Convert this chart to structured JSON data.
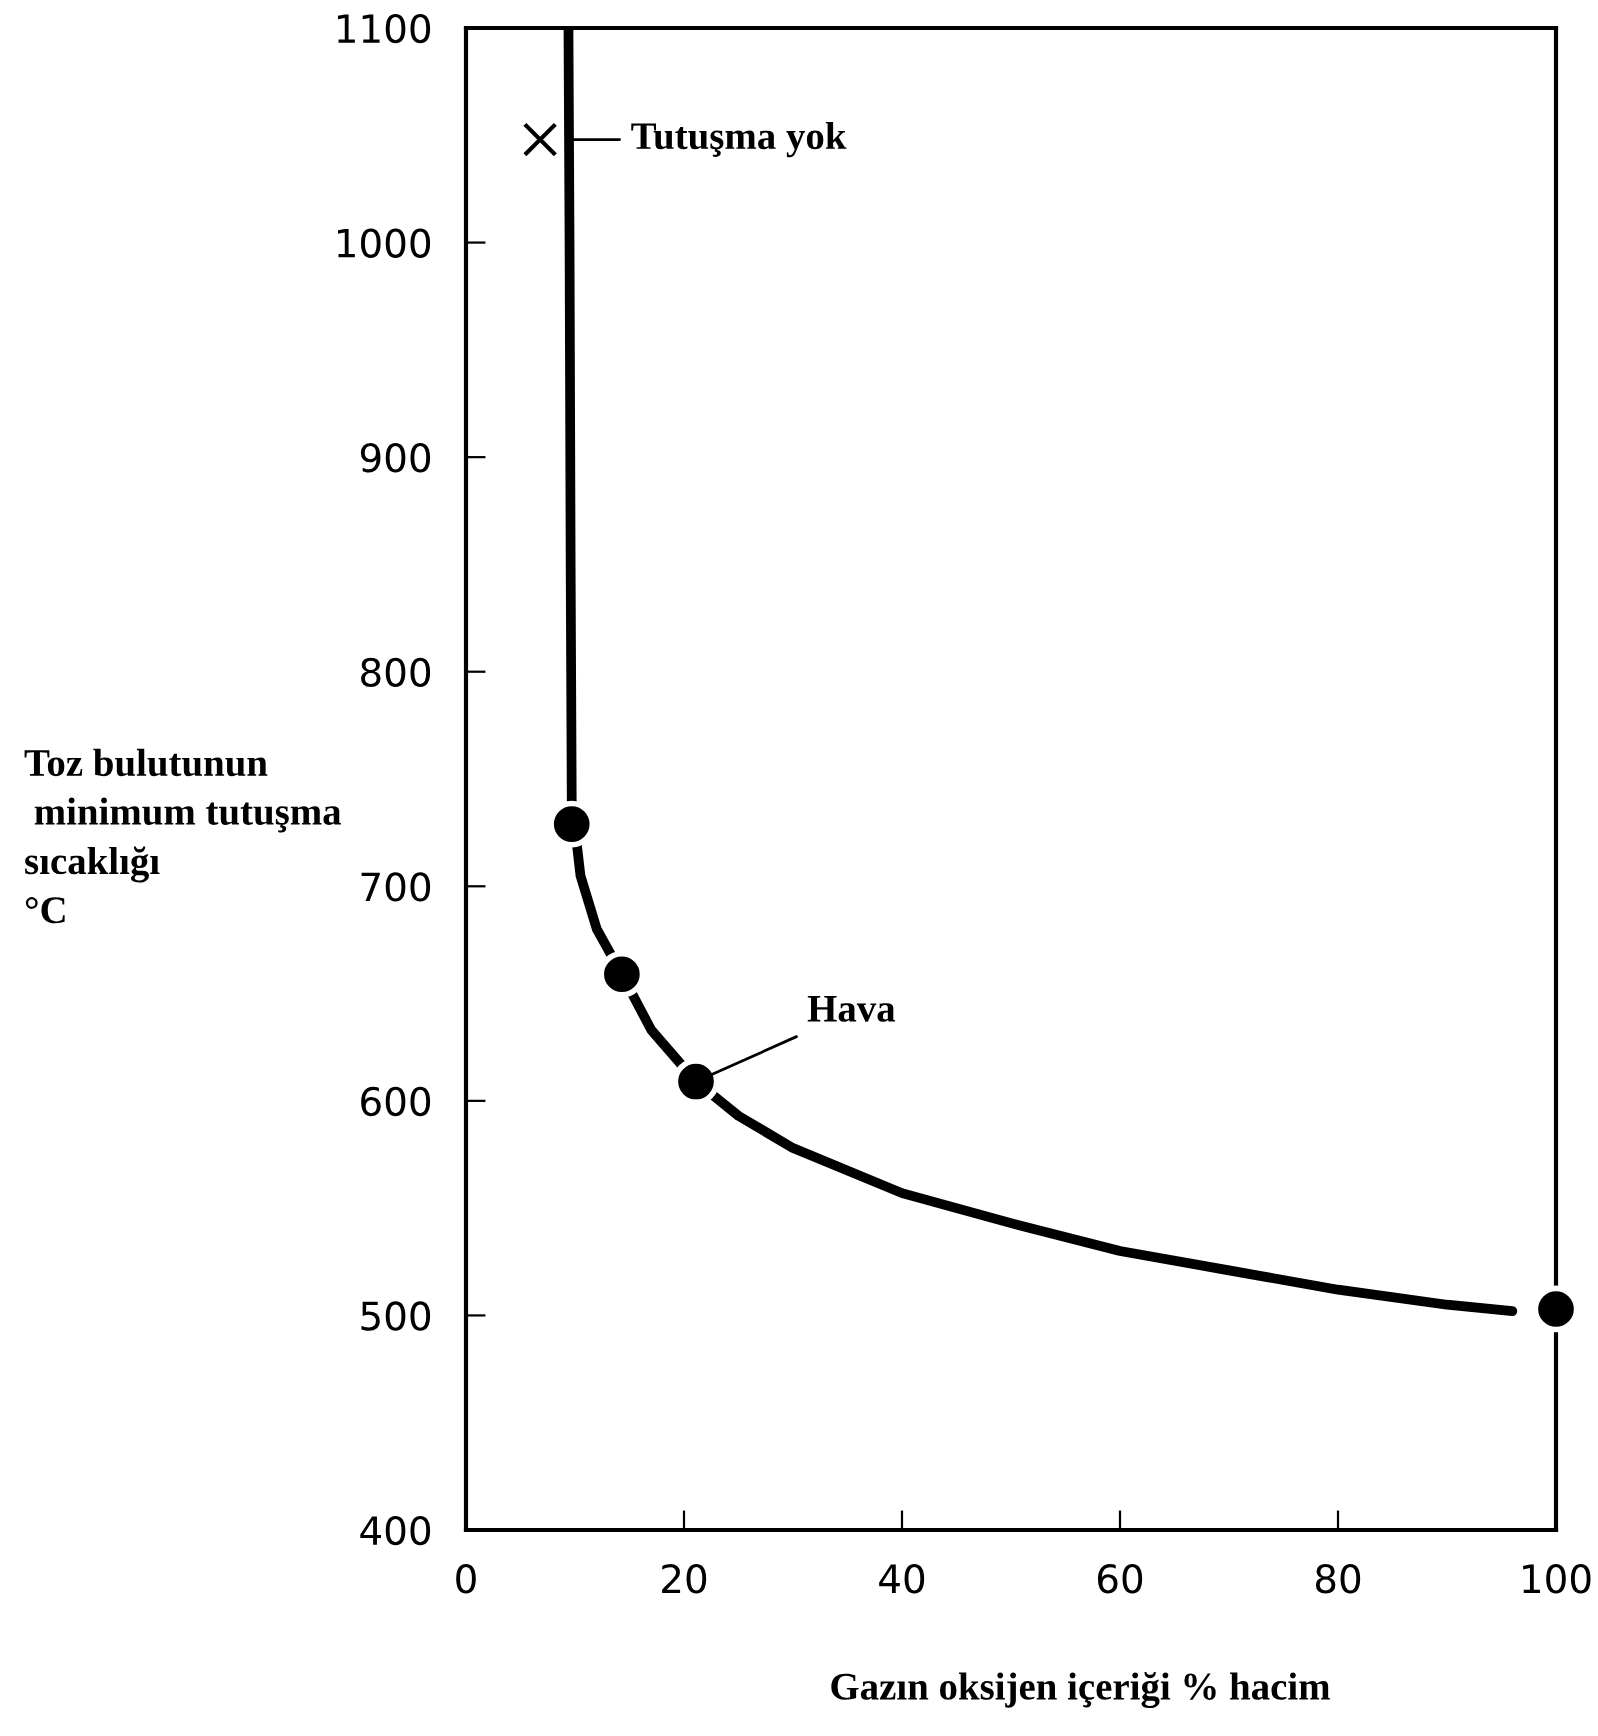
{
  "chart_data": {
    "type": "line",
    "xlabel": "Gazın oksijen içeriği % hacim",
    "ylabel": "Toz bulutunun\n minimum tutuşma\nsıcaklığı\n°C",
    "xlim": [
      0,
      100
    ],
    "ylim": [
      400,
      1100
    ],
    "xticks": [
      0,
      20,
      40,
      60,
      80,
      100
    ],
    "yticks": [
      400,
      500,
      600,
      700,
      800,
      900,
      1000,
      1100
    ],
    "grid": false,
    "series": [
      {
        "color": "#000000",
        "marker": "none",
        "x": [
          9.4,
          9.5,
          9.6,
          9.7,
          10.5,
          12,
          14.3,
          17,
          21.1,
          25,
          30,
          40,
          50,
          60,
          70,
          80,
          90,
          96
        ],
        "values": [
          1100,
          1000,
          850,
          740,
          705,
          680,
          659,
          633,
          609,
          593,
          578,
          557,
          543,
          530,
          521,
          512,
          505,
          502
        ]
      },
      {
        "type": "scatter",
        "color": "#000000",
        "marker": "circle",
        "x": [
          9.7,
          14.3,
          21.1,
          100
        ],
        "values": [
          729,
          659,
          609,
          503
        ]
      },
      {
        "type": "scatter",
        "color": "#000000",
        "marker": "cross",
        "x": [
          6.8
        ],
        "values": [
          1048
        ]
      }
    ],
    "annotations": [
      {
        "text": "Tutuşma yok",
        "x": 9.5,
        "y": 1048
      },
      {
        "text": "Hava",
        "x": 21.1,
        "y": 609
      }
    ]
  }
}
